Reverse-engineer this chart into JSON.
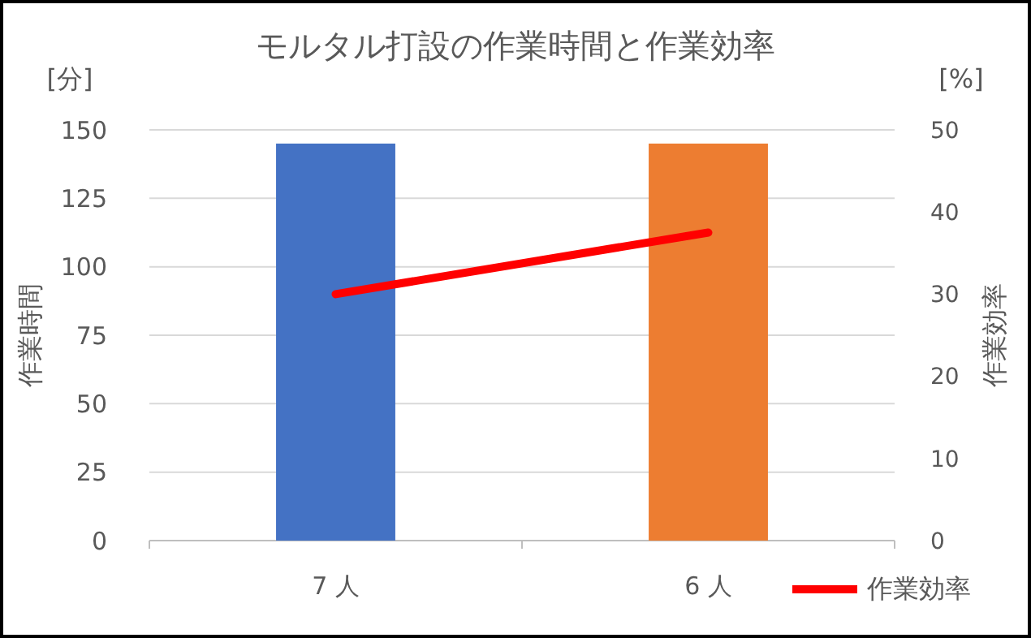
{
  "chart_data": {
    "type": "bar",
    "title": "モルタル打設の作業時間と作業効率",
    "categories": [
      "7 人",
      "6 人"
    ],
    "series": [
      {
        "colors": [
          "#4472c4",
          "#ed7d31"
        ],
        "values": [
          145,
          145
        ]
      },
      {
        "type": "line",
        "name": "作業効率",
        "color": "#ff0000",
        "axis": "y2",
        "values": [
          30,
          37.5
        ]
      }
    ],
    "ylabel": "作業時間",
    "y2label": "作業効率",
    "annotations": [
      "[分]",
      "[%]"
    ],
    "ylim": [
      0,
      150
    ],
    "yticks": [
      0,
      25,
      50,
      75,
      100,
      125,
      150
    ],
    "y2lim": [
      0,
      50
    ],
    "y2ticks": [
      0,
      10,
      20,
      30,
      40,
      50
    ],
    "grid": "y",
    "legend": "bottom right",
    "marker": "none",
    "line_style": "solid"
  }
}
